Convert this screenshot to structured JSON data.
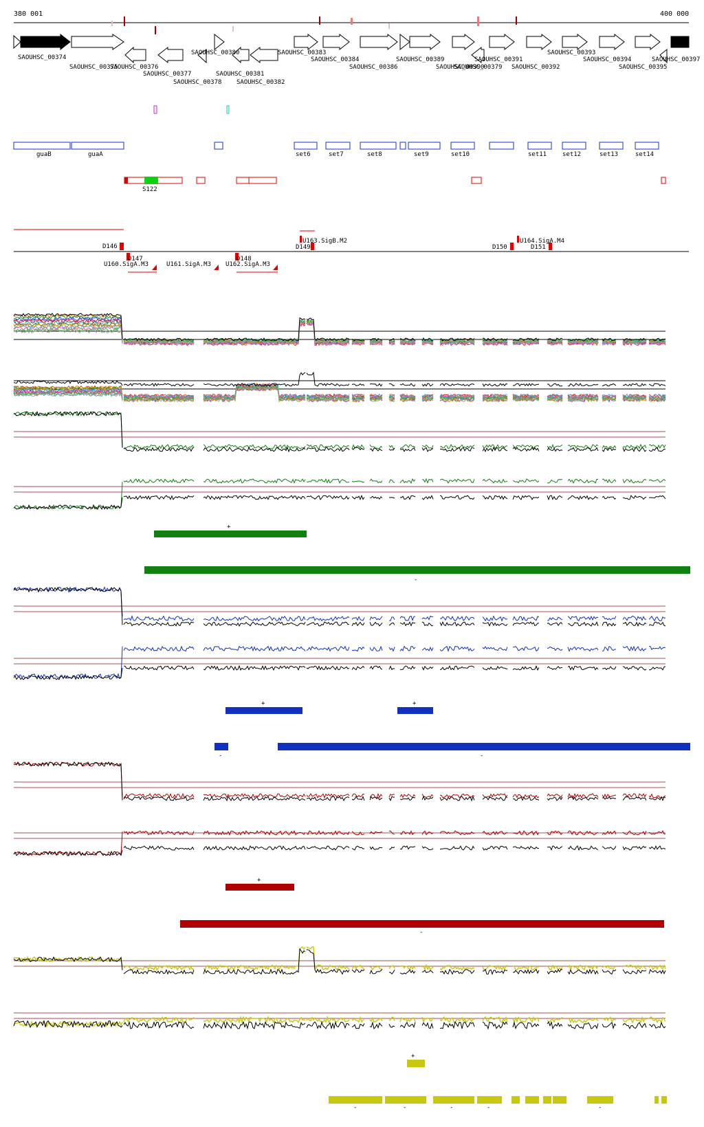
{
  "coord": {
    "start": "380 001",
    "end": "400 000"
  },
  "colors": {
    "gene_fill": "#ffffff",
    "gene_black": "#000000",
    "operon": "#1030d0",
    "utr": "#e00000",
    "s_green": "#10d010",
    "green": "#108010",
    "blue": "#1030c0",
    "red": "#b00000",
    "yellow": "#c8c810",
    "guide": "#a05050"
  },
  "genes": [
    {
      "label": "SAOUHSC_00374"
    },
    {
      "label": "SAOUHSC_00375"
    },
    {
      "label": "SAOUHSC_00376"
    },
    {
      "label": "SAOUHSC_00377"
    },
    {
      "label": "SAOUHSC_00378"
    },
    {
      "label": "SAOUHSC_00380"
    },
    {
      "label": "SAOUHSC_00381"
    },
    {
      "label": "SAOUHSC_00382"
    },
    {
      "label": "SAOUHSC_00383"
    },
    {
      "label": "SAOUHSC_00384"
    },
    {
      "label": "SAOUHSC_00386"
    },
    {
      "label": "SAOUHSC_00389"
    },
    {
      "label": "SAOUHSC_00390"
    },
    {
      "label": "SAOUHSC_00379"
    },
    {
      "label": "SAOUHSC_00391"
    },
    {
      "label": "SAOUHSC_00392"
    },
    {
      "label": "SAOUHSC_00393"
    },
    {
      "label": "SAOUHSC_00394"
    },
    {
      "label": "SAOUHSC_00395"
    },
    {
      "label": "SAOUHSC_00397"
    }
  ],
  "operons": [
    {
      "label": "guaB"
    },
    {
      "label": "guaA"
    },
    {
      "label": "set6"
    },
    {
      "label": "set7"
    },
    {
      "label": "set8"
    },
    {
      "label": "set9"
    },
    {
      "label": "set10"
    },
    {
      "label": "set11"
    },
    {
      "label": "set12"
    },
    {
      "label": "set13"
    },
    {
      "label": "set14"
    }
  ],
  "utr_label": "S122",
  "features": [
    {
      "label": "D146"
    },
    {
      "label": "D147"
    },
    {
      "label": "U160.SigA.M3"
    },
    {
      "label": "U161.SigA.M3"
    },
    {
      "label": "D148"
    },
    {
      "label": "U162.SigA.M3"
    },
    {
      "label": "U163.SigB.M2"
    },
    {
      "label": "D149"
    },
    {
      "label": "U164.SigA.M4"
    },
    {
      "label": "D150"
    },
    {
      "label": "D151"
    }
  ],
  "strand": {
    "plus": "+",
    "minus": "-"
  }
}
